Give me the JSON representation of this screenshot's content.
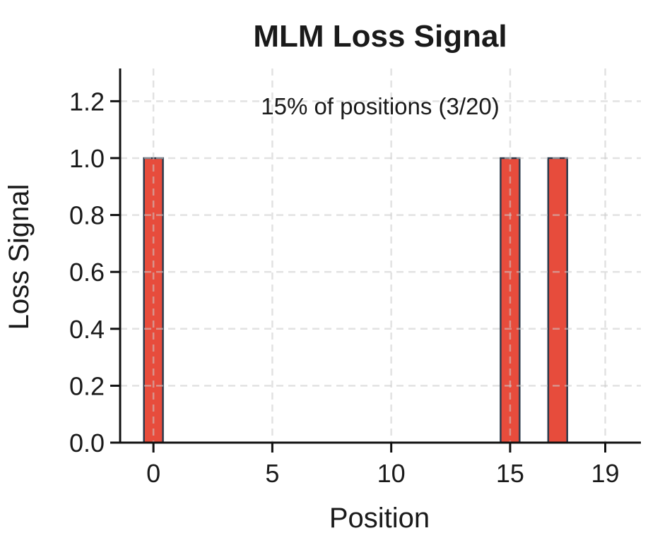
{
  "chart_data": {
    "type": "bar",
    "title": "MLM Loss Signal",
    "xlabel": "Position",
    "ylabel": "Loss Signal",
    "annotation": "15% of positions (3/20)",
    "x": [
      0,
      1,
      2,
      3,
      4,
      5,
      6,
      7,
      8,
      9,
      10,
      11,
      12,
      13,
      14,
      15,
      16,
      17,
      18,
      19
    ],
    "values": [
      1.0,
      0,
      0,
      0,
      0,
      0,
      0,
      0,
      0,
      0,
      0,
      0,
      0,
      0,
      0,
      1.0,
      0,
      1.0,
      0,
      0
    ],
    "bar_positions_with_signal": [
      0,
      15,
      17
    ],
    "bar_height": 1.0,
    "bar_width": 0.8,
    "x_ticks": [
      0,
      5,
      10,
      15,
      19
    ],
    "y_ticks": [
      0.0,
      0.2,
      0.4,
      0.6,
      0.8,
      1.0,
      1.2
    ],
    "y_tick_labels": [
      "0.0",
      "0.2",
      "0.4",
      "0.6",
      "0.8",
      "1.0",
      "1.2"
    ],
    "xlim": [
      -1.4,
      20.5
    ],
    "ylim": [
      0,
      1.315
    ],
    "grid": "dashed, drawn over bars",
    "legend": "none",
    "colors": {
      "bar_fill": "#e74c3c",
      "bar_edge": "#2c3a4c",
      "grid": "#cccccc",
      "axis": "#111111",
      "text": "#1a1a1a",
      "background": "#ffffff"
    }
  }
}
